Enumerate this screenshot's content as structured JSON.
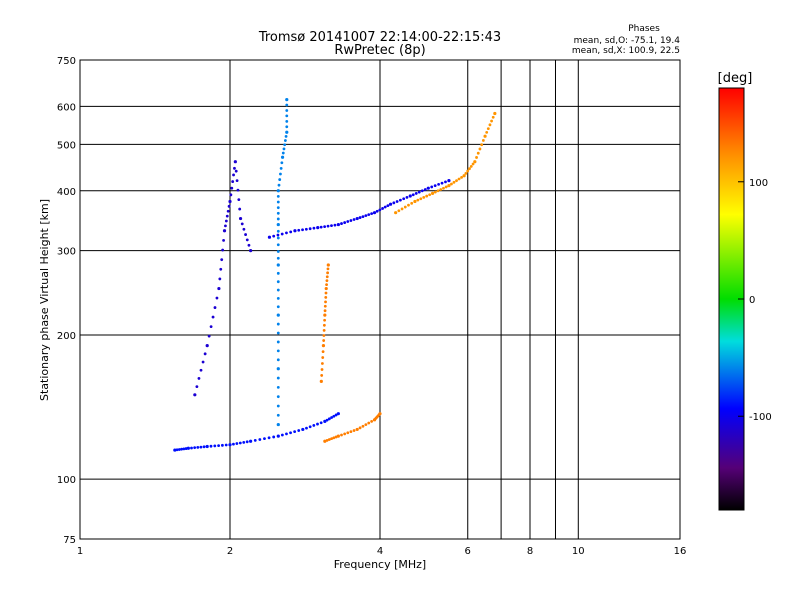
{
  "chart_data": {
    "type": "scatter",
    "title": "Tromsø 20141007 22:14:00-22:15:43",
    "subtitle": "RwPretec (8p)",
    "phases": {
      "label": "Phases",
      "line_o": "mean, sd,O: -75.1, 19.4",
      "line_x": "mean, sd,X: 100.9, 22.5"
    },
    "xlabel": "Frequency [MHz]",
    "ylabel": "Stationary phase Virtual Height [km]",
    "x_scale": "log",
    "y_scale": "log",
    "xlim": [
      1,
      16
    ],
    "ylim": [
      75,
      750
    ],
    "xticks": [
      1,
      2,
      4,
      6,
      8,
      10,
      16
    ],
    "xtick_labels": [
      "1",
      "2",
      "4",
      "6",
      "8",
      "10",
      "16"
    ],
    "x_gridlines": [
      2,
      4,
      6,
      7,
      8,
      9,
      10
    ],
    "yticks": [
      75,
      100,
      200,
      300,
      400,
      500,
      600,
      750
    ],
    "ytick_labels": [
      "75",
      "100",
      "200",
      "300",
      "400",
      "500",
      "600",
      "750"
    ],
    "y_gridlines": [
      100,
      200,
      300,
      400,
      500,
      600
    ],
    "grid": true,
    "colorbar": {
      "label": "[deg]",
      "range": [
        -180,
        180
      ],
      "ticks": [
        100,
        0,
        -100
      ],
      "tick_labels": [
        "100",
        "0",
        "-100"
      ],
      "colormap": "rainbow (black-purple-blue-cyan-green-yellow-orange-red)"
    },
    "traces": [
      {
        "name": "E/F1 trace (blue)",
        "phase": -90,
        "points": [
          [
            1.55,
            115
          ],
          [
            1.65,
            116
          ],
          [
            1.8,
            117
          ],
          [
            2.0,
            118
          ],
          [
            2.2,
            120
          ],
          [
            2.5,
            123
          ],
          [
            2.8,
            127
          ],
          [
            3.1,
            132
          ],
          [
            3.3,
            137
          ]
        ]
      },
      {
        "name": "F trace lower (blue)",
        "phase": -100,
        "points": [
          [
            2.4,
            320
          ],
          [
            2.7,
            330
          ],
          [
            3.0,
            335
          ],
          [
            3.3,
            340
          ],
          [
            3.6,
            350
          ],
          [
            3.9,
            360
          ],
          [
            4.2,
            375
          ],
          [
            4.6,
            390
          ],
          [
            5.0,
            405
          ],
          [
            5.5,
            420
          ]
        ]
      },
      {
        "name": "X-mode F trace (orange)",
        "phase": 120,
        "points": [
          [
            4.3,
            360
          ],
          [
            4.7,
            380
          ],
          [
            5.1,
            395
          ],
          [
            5.5,
            410
          ],
          [
            5.9,
            430
          ],
          [
            6.2,
            460
          ],
          [
            6.5,
            520
          ],
          [
            6.8,
            580
          ]
        ]
      },
      {
        "name": "X-mode E trace (orange)",
        "phase": 130,
        "points": [
          [
            3.1,
            120
          ],
          [
            3.3,
            123
          ],
          [
            3.6,
            127
          ],
          [
            3.9,
            133
          ],
          [
            4.0,
            137
          ]
        ]
      },
      {
        "name": "O-mode column at 2.5 MHz",
        "phase": -60,
        "points": [
          [
            2.5,
            130
          ],
          [
            2.5,
            170
          ],
          [
            2.5,
            220
          ],
          [
            2.5,
            280
          ],
          [
            2.5,
            340
          ],
          [
            2.5,
            400
          ],
          [
            2.55,
            470
          ],
          [
            2.6,
            530
          ],
          [
            2.6,
            620
          ]
        ]
      },
      {
        "name": "orange column at 3.1 MHz",
        "phase": 130,
        "points": [
          [
            3.05,
            160
          ],
          [
            3.08,
            190
          ],
          [
            3.1,
            220
          ],
          [
            3.12,
            250
          ],
          [
            3.15,
            280
          ]
        ]
      },
      {
        "name": "scatter spread 1.7-2.2 MHz",
        "phase": -110,
        "points": [
          [
            1.7,
            150
          ],
          [
            1.8,
            190
          ],
          [
            1.9,
            250
          ],
          [
            1.95,
            330
          ],
          [
            2.0,
            380
          ],
          [
            2.05,
            460
          ],
          [
            2.1,
            350
          ],
          [
            2.2,
            300
          ]
        ]
      }
    ]
  }
}
